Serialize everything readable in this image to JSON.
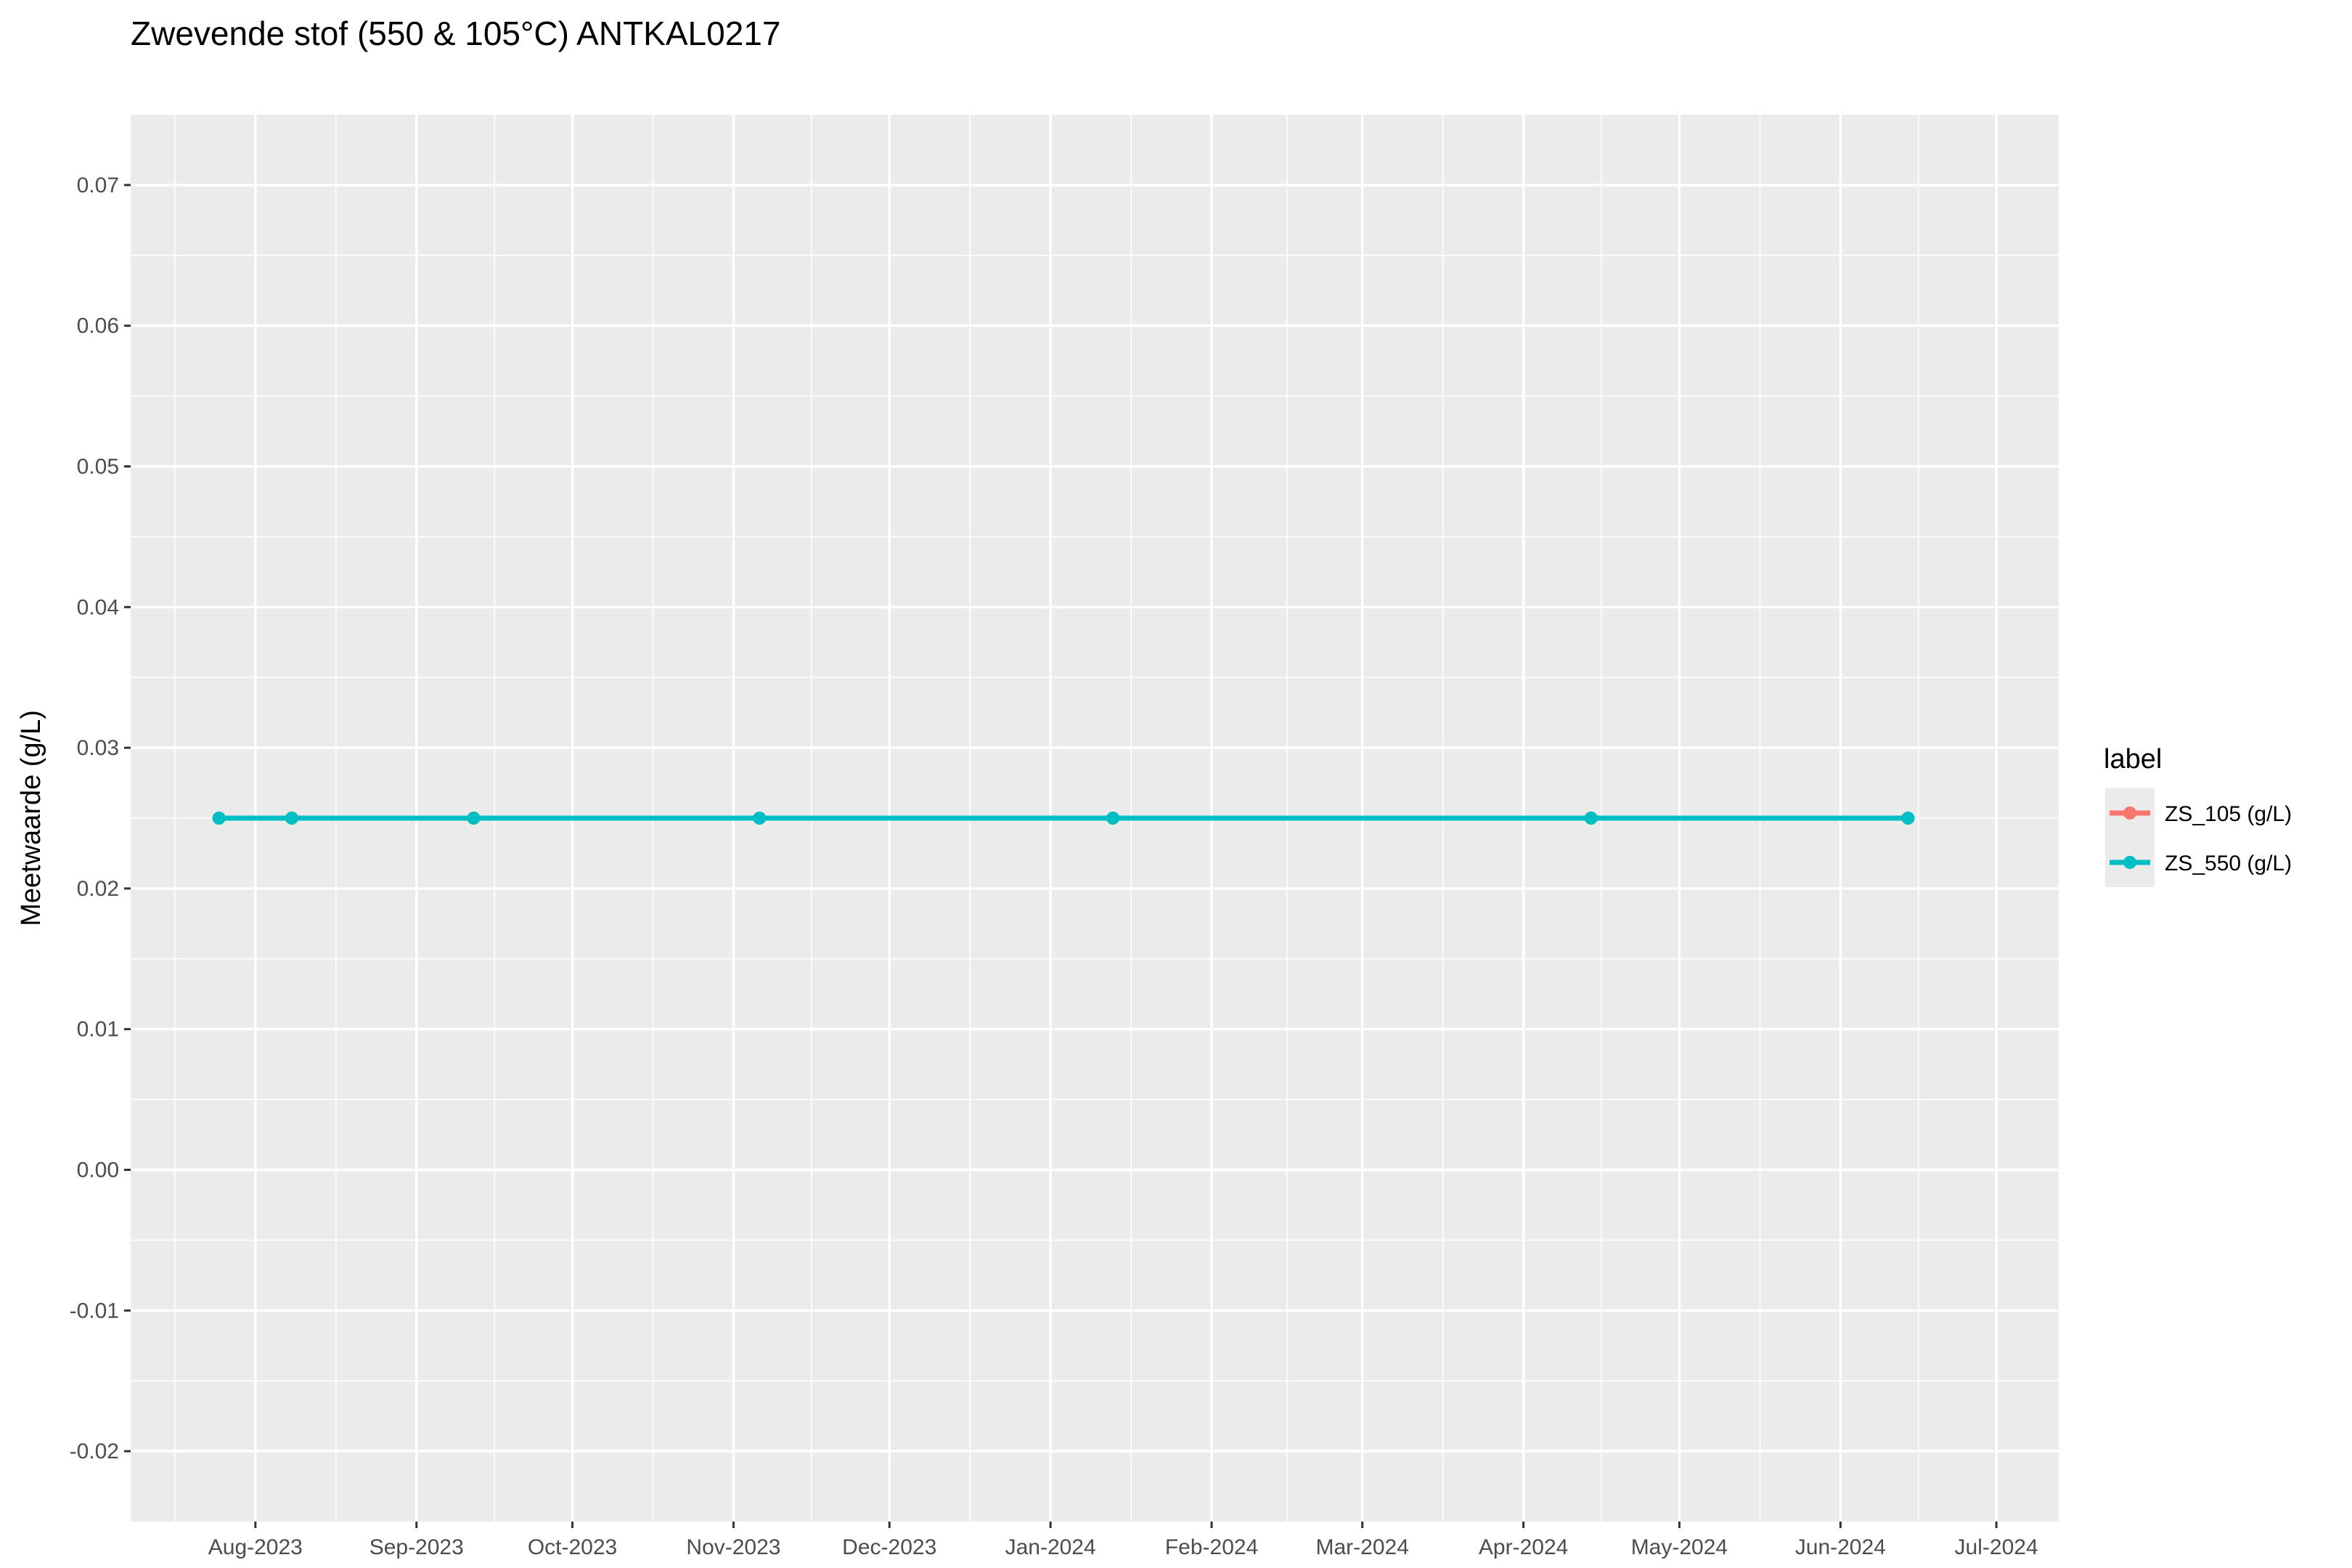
{
  "chart_data": {
    "type": "line",
    "title": "Zwevende stof (550 & 105°C) ANTKAL0217",
    "xlabel": "",
    "ylabel": "Meetwaarde (g/L)",
    "xlim": [
      "2023-07-08",
      "2024-07-13"
    ],
    "ylim": [
      -0.025,
      0.075
    ],
    "y_ticks": [
      -0.02,
      -0.01,
      0.0,
      0.01,
      0.02,
      0.03,
      0.04,
      0.05,
      0.06,
      0.07
    ],
    "y_tick_labels": [
      "-0.02",
      "-0.01",
      "0.00",
      "0.01",
      "0.02",
      "0.03",
      "0.04",
      "0.05",
      "0.06",
      "0.07"
    ],
    "x_ticks": [
      "2023-08-01",
      "2023-09-01",
      "2023-10-01",
      "2023-11-01",
      "2023-12-01",
      "2024-01-01",
      "2024-02-01",
      "2024-03-01",
      "2024-04-01",
      "2024-05-01",
      "2024-06-01",
      "2024-07-01"
    ],
    "x_tick_labels": [
      "Aug-2023",
      "Sep-2023",
      "Oct-2023",
      "Nov-2023",
      "Dec-2023",
      "Jan-2024",
      "Feb-2024",
      "Mar-2024",
      "Apr-2024",
      "May-2024",
      "Jun-2024",
      "Jul-2024"
    ],
    "grid": true,
    "legend": {
      "title": "label",
      "position": "right"
    },
    "series": [
      {
        "name": "ZS_105 (g/L)",
        "color": "#F8766D",
        "x": [
          "2023-07-25",
          "2023-08-08",
          "2023-09-12",
          "2023-11-06",
          "2024-01-13",
          "2024-04-14",
          "2024-06-14"
        ],
        "values": [
          0.025,
          0.025,
          0.025,
          0.025,
          0.025,
          0.025,
          0.025
        ]
      },
      {
        "name": "ZS_550 (g/L)",
        "color": "#00BFC4",
        "x": [
          "2023-07-25",
          "2023-08-08",
          "2023-09-12",
          "2023-11-06",
          "2024-01-13",
          "2024-04-14",
          "2024-06-14"
        ],
        "values": [
          0.025,
          0.025,
          0.025,
          0.025,
          0.025,
          0.025,
          0.025
        ]
      }
    ],
    "colors": {
      "panel": "#EBEBEB",
      "grid": "#FFFFFF",
      "tick": "#333333"
    }
  }
}
